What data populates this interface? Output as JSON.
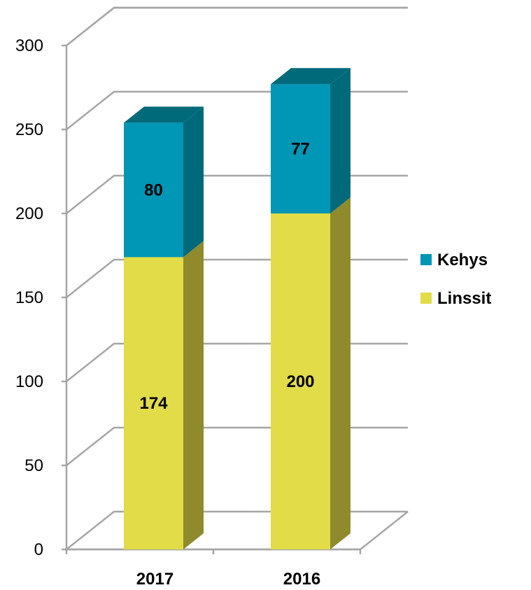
{
  "chart_data": {
    "type": "bar",
    "stacked": true,
    "three_d": true,
    "categories": [
      "2017",
      "2016"
    ],
    "series": [
      {
        "name": "Linssit",
        "values": [
          174,
          200
        ],
        "color": "#e2dc48",
        "side_color": "#8f8b2c"
      },
      {
        "name": "Kehys",
        "values": [
          80,
          77
        ],
        "color": "#0096b5",
        "side_color": "#006a7a"
      }
    ],
    "legend_order": [
      "Kehys",
      "Linssit"
    ],
    "y_ticks": [
      0,
      50,
      100,
      150,
      200,
      250,
      300
    ],
    "ylim": [
      0,
      300
    ],
    "grid": true,
    "legend_position": "right",
    "title": "",
    "xlabel": "",
    "ylabel": ""
  }
}
